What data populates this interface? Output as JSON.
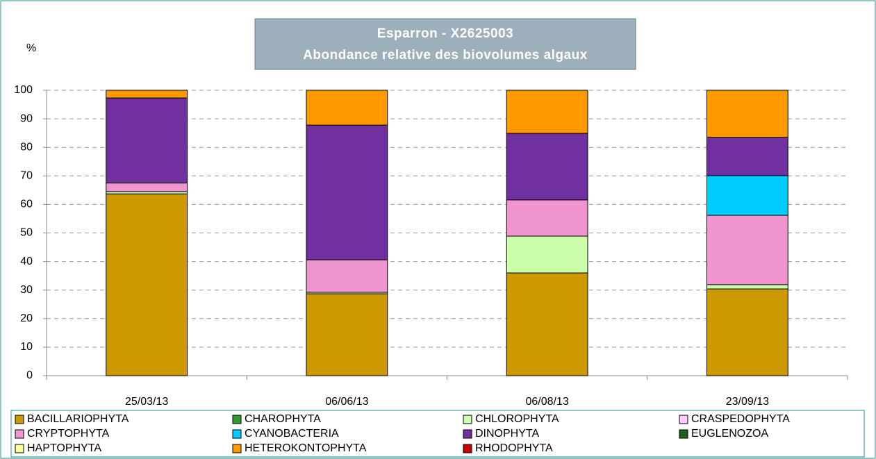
{
  "chart_data": {
    "type": "stacked_bar",
    "title": "Esparron - X2625003",
    "subtitle": "Abondance relative des biovolumes algaux",
    "y_label": "%",
    "categories": [
      "25/03/13",
      "06/06/13",
      "06/08/13",
      "23/09/13"
    ],
    "series": [
      {
        "name": "BACILLARIOPHYTA",
        "color": "#cc9900",
        "values": [
          63.7,
          28.7,
          36.0,
          30.4
        ]
      },
      {
        "name": "CHAROPHYTA",
        "color": "#339933",
        "values": [
          0,
          0,
          0,
          0
        ]
      },
      {
        "name": "CHLOROPHYTA",
        "color": "#ccffaa",
        "values": [
          0.8,
          0.5,
          12.9,
          1.5
        ]
      },
      {
        "name": "CRASPEDOPHYTA",
        "color": "#ffccff",
        "values": [
          0,
          0,
          0,
          0
        ]
      },
      {
        "name": "CRYPTOPHYTA",
        "color": "#f095d0",
        "values": [
          3.0,
          11.4,
          12.7,
          24.3
        ]
      },
      {
        "name": "CYANOBACTERIA",
        "color": "#00ccff",
        "values": [
          0,
          0,
          0,
          13.9
        ]
      },
      {
        "name": "DINOPHYTA",
        "color": "#7030a0",
        "values": [
          29.8,
          47.2,
          23.3,
          13.4
        ]
      },
      {
        "name": "EUGLENOZOA",
        "color": "#1f5f1f",
        "values": [
          0,
          0,
          0,
          0
        ]
      },
      {
        "name": "HAPTOPHYTA",
        "color": "#ffff99",
        "values": [
          0,
          0,
          0,
          0
        ]
      },
      {
        "name": "HETEROKONTOPHYTA",
        "color": "#ff9900",
        "values": [
          2.7,
          12.2,
          15.1,
          16.5
        ]
      },
      {
        "name": "RHODOPHYTA",
        "color": "#cc0000",
        "values": [
          0,
          0,
          0,
          0
        ]
      }
    ],
    "ylim": [
      0,
      100
    ],
    "yticks": [
      0,
      10,
      20,
      30,
      40,
      50,
      60,
      70,
      80,
      90,
      100
    ],
    "grid": true
  }
}
